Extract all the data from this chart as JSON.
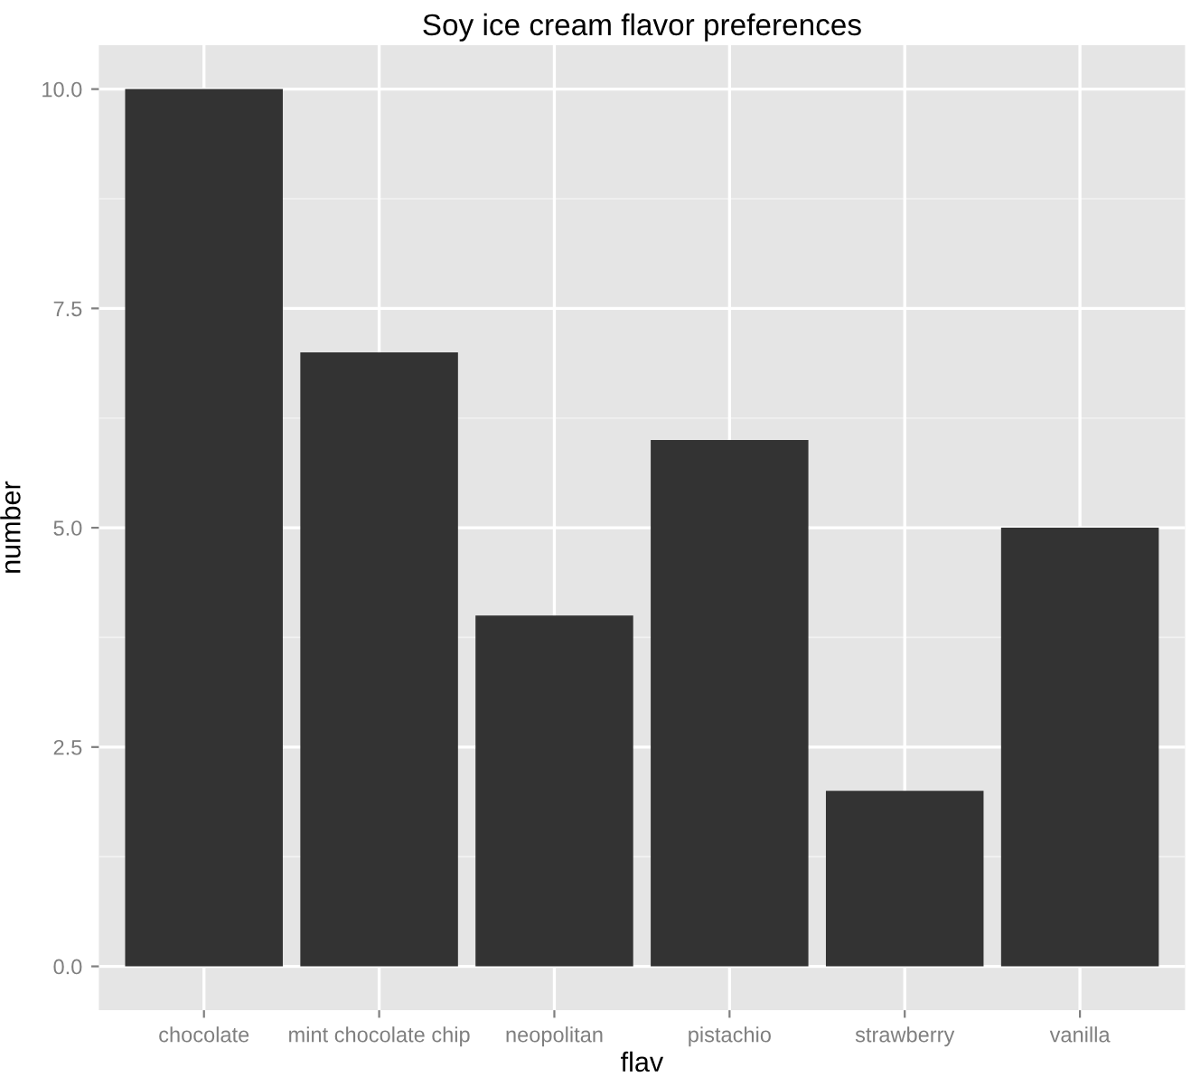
{
  "chart_data": {
    "type": "bar",
    "title": "Soy ice cream flavor preferences",
    "xlabel": "flav",
    "ylabel": "number",
    "categories": [
      "chocolate",
      "mint chocolate chip",
      "neopolitan",
      "pistachio",
      "strawberry",
      "vanilla"
    ],
    "values": [
      10,
      7,
      4,
      6,
      2,
      5
    ],
    "color": "#333333",
    "ylim": [
      -0.5,
      10.5
    ],
    "yticks": [
      {
        "value": 0,
        "label": "0.0"
      },
      {
        "value": 2.5,
        "label": "2.5"
      },
      {
        "value": 5,
        "label": "5.0"
      },
      {
        "value": 7.5,
        "label": "7.5"
      },
      {
        "value": 10,
        "label": "10.0"
      }
    ],
    "grid": true
  }
}
